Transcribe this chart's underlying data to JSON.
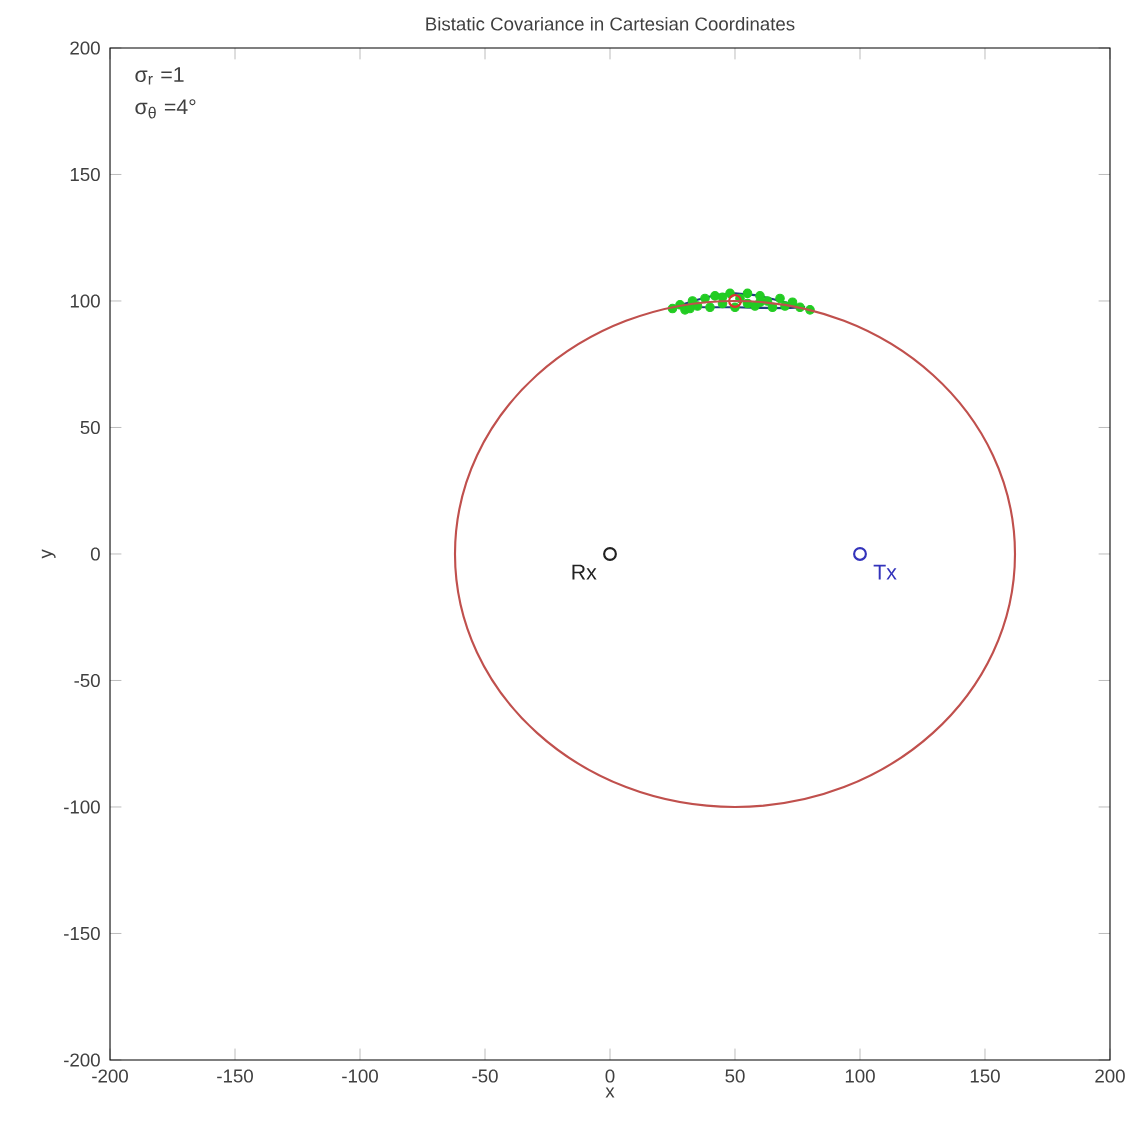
{
  "chart_data": {
    "type": "line",
    "title": "Bistatic Covariance in Cartesian Coordinates",
    "xlabel": "x",
    "ylabel": "y",
    "xlim": [
      -200,
      200
    ],
    "ylim": [
      -200,
      200
    ],
    "xticks": [
      -200,
      -150,
      -100,
      -50,
      0,
      50,
      100,
      150,
      200
    ],
    "yticks": [
      -200,
      -150,
      -100,
      -50,
      0,
      50,
      100,
      150,
      200
    ],
    "grid": false,
    "series": [
      {
        "type": "scatter",
        "marker": "circle",
        "color": "#22cc22",
        "x": [
          25,
          28,
          30,
          33,
          35,
          38,
          40,
          42,
          45,
          48,
          50,
          52,
          55,
          58,
          60,
          63,
          65,
          68,
          70,
          73,
          76,
          80,
          32,
          45,
          60,
          55
        ],
        "values": [
          97,
          98.5,
          96.5,
          100,
          98,
          101,
          97.5,
          102,
          99,
          103,
          97.5,
          101,
          103,
          98,
          102,
          100,
          97.5,
          101,
          98,
          99.5,
          97.5,
          96.5,
          97,
          101.5,
          99.5,
          99
        ]
      },
      {
        "marker": "none",
        "color": "#1f3f7f",
        "x": [
          27,
          35,
          42,
          50,
          58,
          65,
          72,
          78
        ],
        "values": [
          98,
          100.5,
          102.3,
          103,
          102.3,
          100.8,
          99,
          97.5
        ]
      },
      {
        "marker": "none",
        "color": "#1f3f7f",
        "x": [
          27,
          32,
          40,
          50,
          60,
          70,
          78
        ],
        "values": [
          98,
          97.6,
          97.5,
          97.5,
          97.3,
          97.2,
          97.5
        ]
      },
      {
        "type": "scatter",
        "marker": "circle",
        "color": "#e03030",
        "x": [
          50
        ],
        "values": [
          100
        ]
      },
      {
        "type": "scatter",
        "marker": "circle",
        "color": "#222222",
        "x": [
          0
        ],
        "values": [
          0
        ]
      },
      {
        "type": "scatter",
        "marker": "circle",
        "color": "#3333bb",
        "x": [
          100
        ],
        "values": [
          0
        ]
      }
    ],
    "annotations": [
      {
        "text": "σ$_{r}$ =1"
      },
      {
        "text": "σ$_{θ}$ =4°"
      },
      {
        "text": "Rx",
        "x": 0,
        "y": 0
      },
      {
        "text": "Tx",
        "x": 100,
        "y": 0
      }
    ]
  }
}
